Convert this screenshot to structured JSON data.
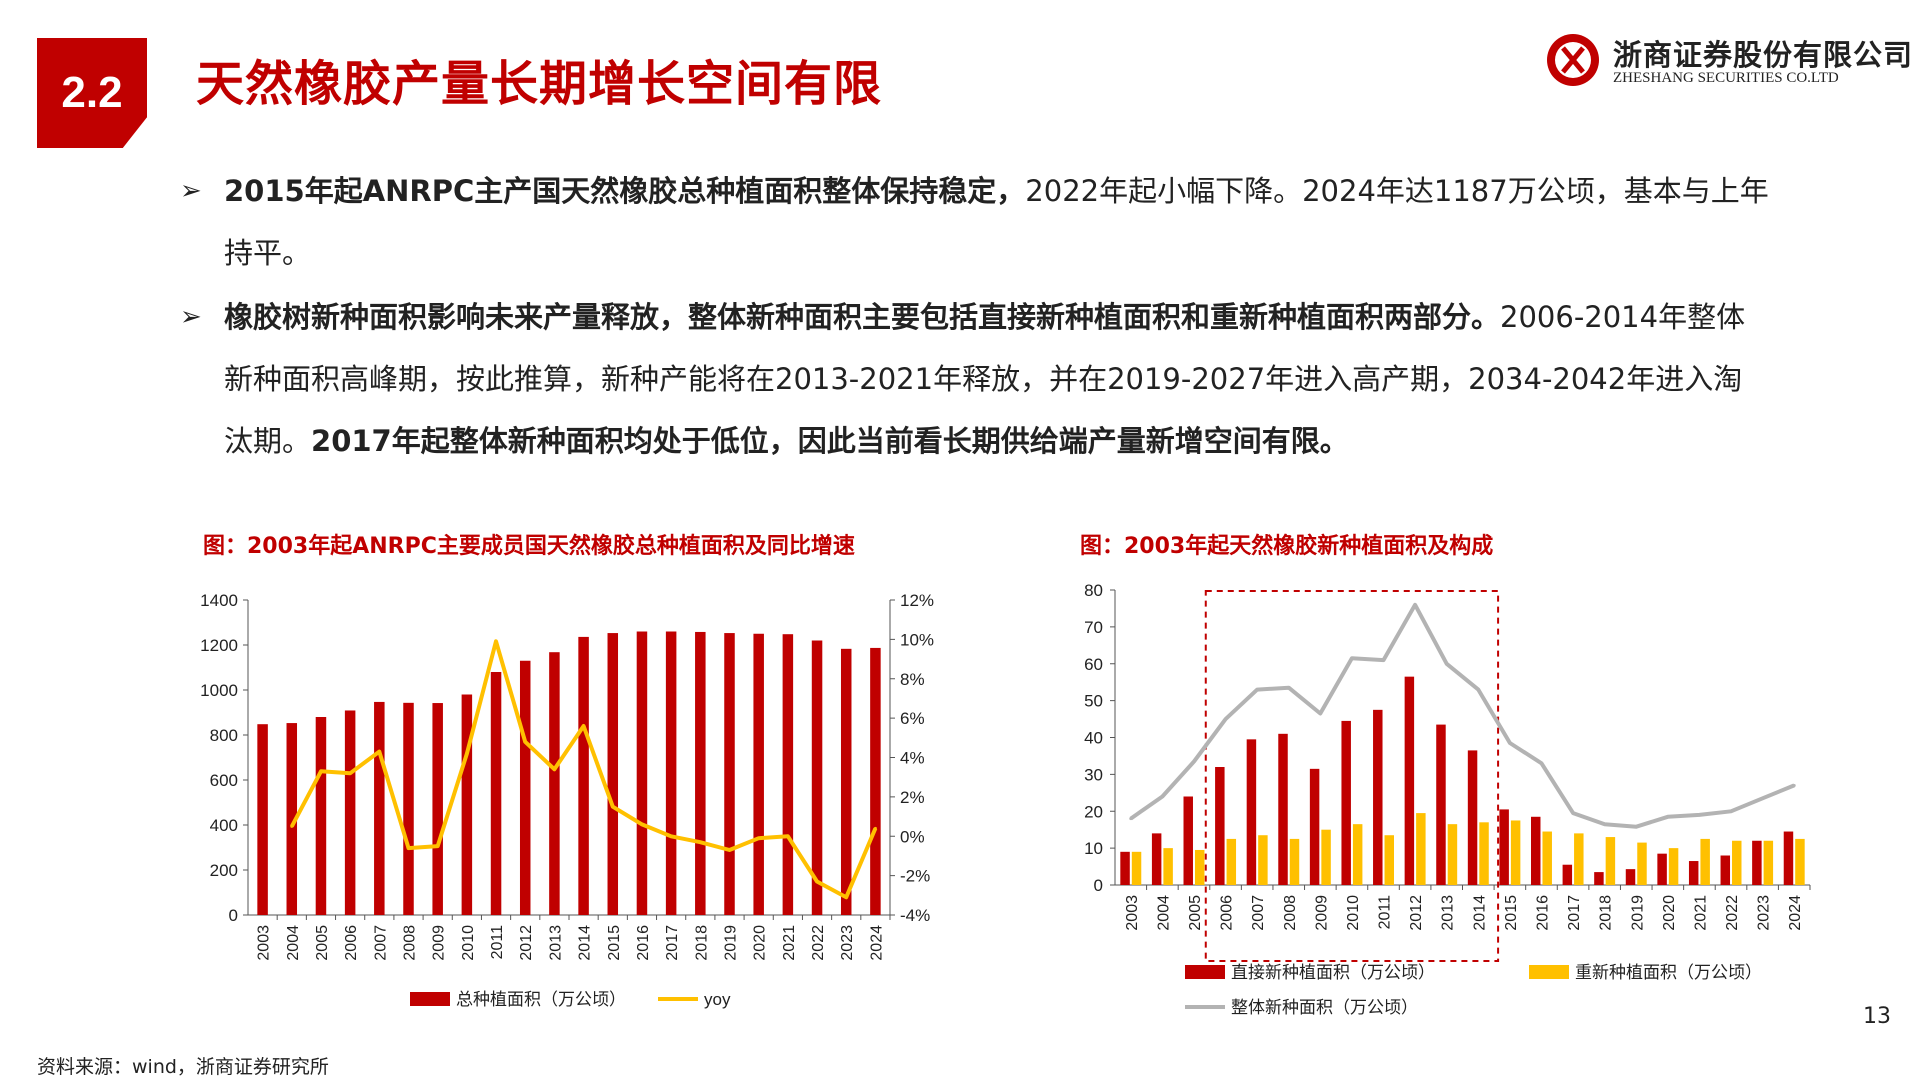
{
  "header": {
    "section_number": "2.2",
    "title": "天然橡胶产量长期增长空间有限",
    "company_cn": "浙商证券股份有限公司",
    "company_en": "ZHESHANG SECURITIES CO.LTD",
    "brand_color": "#c00000"
  },
  "bullets": [
    {
      "marker": "➢",
      "bold": "2015年起ANRPC主产国天然橡胶总种植面积整体保持稳定，",
      "normal": "2022年起小幅下降。2024年达1187万公顷，基本与上年持平。",
      "bold_tail": ""
    },
    {
      "marker": "➢",
      "bold": "橡胶树新种面积影响未来产量释放，整体新种面积主要包括直接新种植面积和重新种植面积两部分。",
      "normal": "2006-2014年整体新种面积高峰期，按此推算，新种产能将在2013-2021年释放，并在2019-2027年进入高产期，2034-2042年进入淘汰期。",
      "bold_tail": "2017年起整体新种面积均处于低位，因此当前看长期供给端产量新增空间有限。"
    }
  ],
  "chart_data": [
    {
      "type": "bar",
      "title": "图：2003年起ANRPC主要成员国天然橡胶总种植面积及同比增速",
      "categories": [
        "2003",
        "2004",
        "2005",
        "2006",
        "2007",
        "2008",
        "2009",
        "2010",
        "2011",
        "2012",
        "2013",
        "2014",
        "2015",
        "2016",
        "2017",
        "2018",
        "2019",
        "2020",
        "2021",
        "2022",
        "2023",
        "2024"
      ],
      "series": [
        {
          "name": "总种植面积（万公顷）",
          "kind": "bar",
          "axis": "left",
          "color": "#c00000",
          "values": [
            848,
            853,
            880,
            909,
            947,
            943,
            942,
            980,
            1080,
            1130,
            1168,
            1236,
            1253,
            1260,
            1260,
            1258,
            1253,
            1250,
            1248,
            1220,
            1183,
            1187
          ]
        },
        {
          "name": "yoy",
          "kind": "line",
          "axis": "right",
          "color": "#ffc000",
          "values": [
            null,
            0.5,
            3.3,
            3.2,
            4.3,
            -0.6,
            -0.5,
            4.2,
            9.9,
            4.8,
            3.4,
            5.6,
            1.5,
            0.6,
            0.0,
            -0.3,
            -0.7,
            -0.1,
            0.0,
            -2.3,
            -3.1,
            0.4
          ]
        }
      ],
      "ylim": [
        0,
        1400
      ],
      "yticks": [
        0,
        200,
        400,
        600,
        800,
        1000,
        1200,
        1400
      ],
      "y2lim": [
        -4,
        12
      ],
      "y2ticks": [
        "-4%",
        "-2%",
        "0%",
        "2%",
        "4%",
        "6%",
        "8%",
        "10%",
        "12%"
      ],
      "legend": "bottom"
    },
    {
      "type": "bar",
      "title": "图：2003年起天然橡胶新种植面积及构成",
      "categories": [
        "2003",
        "2004",
        "2005",
        "2006",
        "2007",
        "2008",
        "2009",
        "2010",
        "2011",
        "2012",
        "2013",
        "2014",
        "2015",
        "2016",
        "2017",
        "2018",
        "2019",
        "2020",
        "2021",
        "2022",
        "2023",
        "2024"
      ],
      "series": [
        {
          "name": "直接新种植面积（万公顷）",
          "kind": "bar",
          "color": "#c00000",
          "values": [
            9,
            14,
            24,
            32,
            39.5,
            41,
            31.5,
            44.5,
            47.5,
            56.5,
            43.5,
            36.5,
            20.5,
            18.5,
            5.5,
            3.5,
            4.3,
            8.5,
            6.5,
            8,
            12,
            14.5
          ]
        },
        {
          "name": "重新种植面积（万公顷）",
          "kind": "bar",
          "color": "#ffc000",
          "values": [
            9,
            10,
            9.5,
            12.5,
            13.5,
            12.5,
            15,
            16.5,
            13.5,
            19.5,
            16.5,
            17,
            17.5,
            14.5,
            14,
            13,
            11.5,
            10,
            12.5,
            12,
            12,
            12.5
          ]
        },
        {
          "name": "整体新种面积（万公顷）",
          "kind": "line",
          "color": "#b3b3b3",
          "values": [
            18,
            24,
            33.5,
            45,
            53,
            53.5,
            46.5,
            61.5,
            61,
            76,
            60,
            53,
            38.5,
            33,
            19.5,
            16.5,
            15.8,
            18.5,
            19,
            20,
            23.5,
            27
          ]
        }
      ],
      "ylim": [
        0,
        80
      ],
      "yticks": [
        0,
        10,
        20,
        30,
        40,
        50,
        60,
        70,
        80
      ],
      "highlight_range": [
        "2006",
        "2014"
      ],
      "legend": "bottom"
    }
  ],
  "page_number": "13",
  "source": "资料来源：wind，浙商证券研究所"
}
